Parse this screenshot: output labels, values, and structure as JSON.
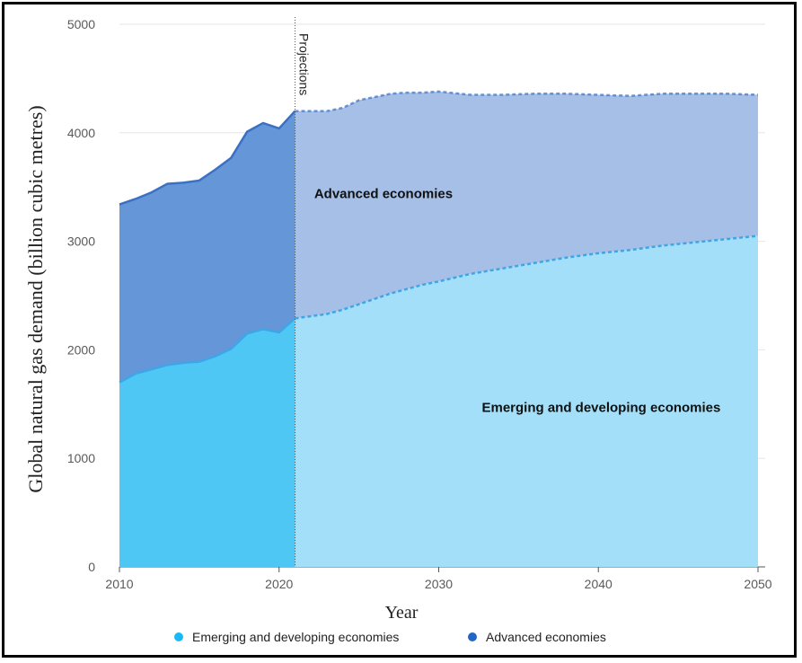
{
  "chart_data": {
    "type": "area",
    "stacked": true,
    "xlabel": "Year",
    "ylabel": "Global natural gas demand (billion cubic metres)",
    "xlim": [
      2010,
      2050
    ],
    "ylim": [
      0,
      5000
    ],
    "x_ticks": [
      2010,
      2020,
      2030,
      2040,
      2050
    ],
    "y_ticks": [
      0,
      1000,
      2000,
      3000,
      4000,
      5000
    ],
    "grid": "horizontal",
    "projection_start": 2021,
    "projection_label": "Projections",
    "legend_position": "bottom",
    "colors": {
      "emerging_historical": "#4fc7f5",
      "emerging_projected": "#a3dff8",
      "advanced_historical": "#6496d8",
      "advanced_projected": "#a5bfe6",
      "line_emerging": "#3ea6e6",
      "line_advanced": "#3a71c4",
      "legend_emerging": "#1ab8f5",
      "legend_advanced": "#2266c4"
    },
    "annotations": [
      {
        "text": "Advanced economies",
        "x": 2022.2,
        "y": 3400
      },
      {
        "text": "Emerging and developing economies",
        "x": 2032.7,
        "y": 1430
      }
    ],
    "series": [
      {
        "name": "Emerging and developing economies",
        "x": [
          2010,
          2011,
          2012,
          2013,
          2014,
          2015,
          2016,
          2017,
          2018,
          2019,
          2020,
          2021,
          2022,
          2023,
          2024,
          2025,
          2026,
          2027,
          2028,
          2029,
          2030,
          2032,
          2034,
          2036,
          2038,
          2040,
          2042,
          2044,
          2046,
          2048,
          2050
        ],
        "values": [
          1700,
          1780,
          1820,
          1860,
          1880,
          1890,
          1940,
          2010,
          2150,
          2190,
          2160,
          2290,
          2310,
          2330,
          2370,
          2420,
          2470,
          2520,
          2560,
          2600,
          2630,
          2700,
          2750,
          2800,
          2850,
          2890,
          2920,
          2960,
          2990,
          3020,
          3050
        ]
      },
      {
        "name": "Advanced economies",
        "x": [
          2010,
          2011,
          2012,
          2013,
          2014,
          2015,
          2016,
          2017,
          2018,
          2019,
          2020,
          2021,
          2022,
          2023,
          2024,
          2025,
          2026,
          2027,
          2028,
          2029,
          2030,
          2032,
          2034,
          2036,
          2038,
          2040,
          2042,
          2044,
          2046,
          2048,
          2050
        ],
        "values": [
          1640,
          1610,
          1630,
          1670,
          1660,
          1670,
          1720,
          1760,
          1860,
          1900,
          1880,
          1910,
          1890,
          1870,
          1860,
          1880,
          1860,
          1840,
          1810,
          1770,
          1750,
          1650,
          1600,
          1560,
          1510,
          1460,
          1420,
          1400,
          1370,
          1340,
          1300
        ]
      }
    ]
  }
}
